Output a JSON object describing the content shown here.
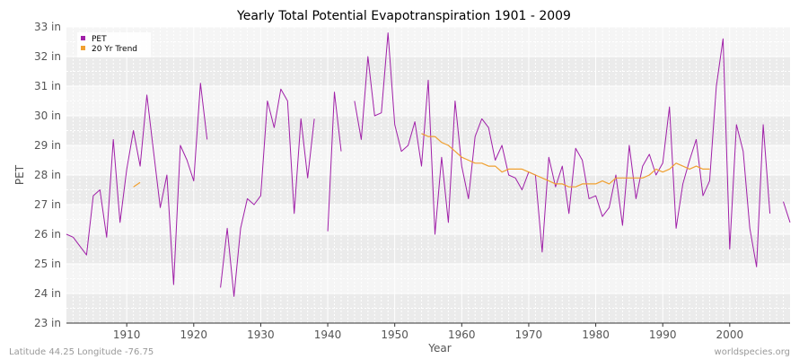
{
  "chart_data": {
    "type": "line",
    "title": "Yearly Total Potential Evapotranspiration 1901 - 2009",
    "xlabel": "Year",
    "ylabel": "PET",
    "xlim": [
      1901,
      2009
    ],
    "ylim": [
      23,
      33
    ],
    "x_ticks": [
      1910,
      1920,
      1930,
      1940,
      1950,
      1960,
      1970,
      1980,
      1990,
      2000
    ],
    "x_tick_labels": [
      "1910",
      "1920",
      "1930",
      "1940",
      "1950",
      "1960",
      "1970",
      "1980",
      "1990",
      "2000"
    ],
    "y_ticks": [
      23,
      24,
      25,
      26,
      27,
      28,
      29,
      30,
      31,
      32,
      33
    ],
    "y_tick_labels": [
      "23 in",
      "24 in",
      "25 in",
      "26 in",
      "27 in",
      "28 in",
      "29 in",
      "30 in",
      "31 in",
      "32 in",
      "33 in"
    ],
    "legend_position": "top-left",
    "series": [
      {
        "name": "PET",
        "color": "#a020a8",
        "x": [
          1901,
          1902,
          1903,
          1904,
          1905,
          1906,
          1907,
          1908,
          1909,
          1910,
          1911,
          1912,
          1913,
          1914,
          1915,
          1916,
          1917,
          1918,
          1919,
          1920,
          1921,
          1922,
          1923,
          1924,
          1925,
          1926,
          1927,
          1928,
          1929,
          1930,
          1931,
          1932,
          1933,
          1934,
          1935,
          1936,
          1937,
          1938,
          1939,
          1940,
          1941,
          1942,
          1943,
          1944,
          1945,
          1946,
          1947,
          1948,
          1949,
          1950,
          1951,
          1952,
          1953,
          1954,
          1955,
          1956,
          1957,
          1958,
          1959,
          1960,
          1961,
          1962,
          1963,
          1964,
          1965,
          1966,
          1967,
          1968,
          1969,
          1970,
          1971,
          1972,
          1973,
          1974,
          1975,
          1976,
          1977,
          1978,
          1979,
          1980,
          1981,
          1982,
          1983,
          1984,
          1985,
          1986,
          1987,
          1988,
          1989,
          1990,
          1991,
          1992,
          1993,
          1994,
          1995,
          1996,
          1997,
          1998,
          1999,
          2000,
          2001,
          2002,
          2003,
          2004,
          2005,
          2006,
          2007,
          2008,
          2009
        ],
        "values": [
          26.0,
          25.9,
          25.6,
          25.3,
          27.3,
          27.5,
          25.9,
          29.2,
          26.4,
          28.2,
          29.5,
          28.3,
          30.7,
          28.8,
          26.9,
          28.0,
          24.3,
          29.0,
          28.5,
          27.8,
          31.1,
          29.2,
          null,
          24.2,
          26.2,
          23.9,
          26.2,
          27.2,
          27.0,
          27.3,
          30.5,
          29.6,
          30.9,
          30.5,
          26.7,
          29.9,
          27.9,
          29.9,
          null,
          26.1,
          30.8,
          28.8,
          null,
          30.5,
          29.2,
          32.0,
          30.0,
          30.1,
          32.8,
          29.7,
          28.8,
          29.0,
          29.8,
          28.3,
          31.2,
          26.0,
          28.6,
          26.4,
          30.5,
          28.3,
          27.2,
          29.3,
          29.9,
          29.6,
          28.5,
          29.0,
          28.0,
          27.9,
          27.5,
          28.1,
          28.0,
          25.4,
          28.6,
          27.6,
          28.3,
          26.7,
          28.9,
          28.5,
          27.2,
          27.3,
          26.6,
          26.9,
          28.0,
          26.3,
          29.0,
          27.2,
          28.3,
          28.7,
          28.0,
          28.4,
          30.3,
          26.2,
          27.7,
          28.5,
          29.2,
          27.3,
          27.8,
          31.0,
          32.6,
          25.5,
          29.7,
          28.8,
          26.2,
          24.9,
          29.7,
          26.7,
          null,
          27.1,
          26.4
        ]
      },
      {
        "name": "20 Yr Trend",
        "color": "#f0a030",
        "x": [
          1911,
          1912,
          1954,
          1955,
          1956,
          1957,
          1958,
          1959,
          1960,
          1961,
          1962,
          1963,
          1964,
          1965,
          1966,
          1967,
          1968,
          1969,
          1970,
          1971,
          1972,
          1973,
          1974,
          1975,
          1976,
          1977,
          1978,
          1979,
          1980,
          1981,
          1982,
          1983,
          1984,
          1985,
          1986,
          1987,
          1988,
          1989,
          1990,
          1991,
          1992,
          1993,
          1994,
          1995,
          1996,
          1997
        ],
        "values": [
          27.6,
          27.75,
          29.4,
          29.3,
          29.3,
          29.1,
          29.0,
          28.8,
          28.6,
          28.5,
          28.4,
          28.4,
          28.3,
          28.3,
          28.1,
          28.2,
          28.2,
          28.2,
          28.1,
          28.0,
          27.9,
          27.8,
          27.7,
          27.7,
          27.6,
          27.6,
          27.7,
          27.7,
          27.7,
          27.8,
          27.7,
          27.9,
          27.9,
          27.9,
          27.9,
          27.9,
          28.0,
          28.2,
          28.1,
          28.2,
          28.4,
          28.3,
          28.2,
          28.3,
          28.2,
          28.2
        ]
      }
    ]
  },
  "footer": {
    "left": "Latitude 44.25 Longitude -76.75",
    "right": "worldspecies.org"
  }
}
